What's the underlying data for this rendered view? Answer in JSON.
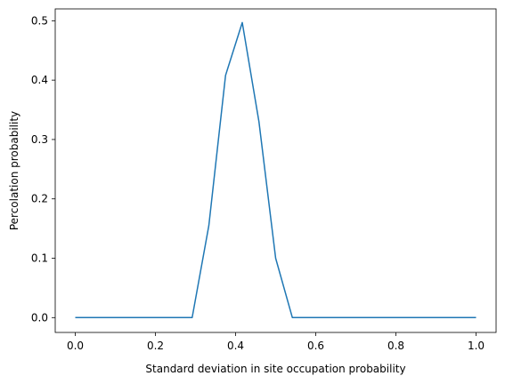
{
  "chart_data": {
    "type": "line",
    "title": "",
    "xlabel": "Standard deviation in site occupation probability",
    "ylabel": "Percolation probability",
    "xlim": [
      -0.05,
      1.05
    ],
    "ylim": [
      -0.025,
      0.52
    ],
    "grid": false,
    "legend": "none",
    "line_color": "#1f77b4",
    "xticks": [
      0.0,
      0.2,
      0.4,
      0.6,
      0.8,
      1.0
    ],
    "xtick_labels": [
      "0.0",
      "0.2",
      "0.4",
      "0.6",
      "0.8",
      "1.0"
    ],
    "yticks": [
      0.0,
      0.1,
      0.2,
      0.3,
      0.4,
      0.5
    ],
    "ytick_labels": [
      "0.0",
      "0.1",
      "0.2",
      "0.3",
      "0.4",
      "0.5"
    ],
    "series": [
      {
        "x": [
          0.0,
          0.0417,
          0.0833,
          0.125,
          0.1667,
          0.2083,
          0.25,
          0.2917,
          0.3333,
          0.375,
          0.4167,
          0.4583,
          0.5,
          0.5417,
          0.5833,
          0.625,
          0.6667,
          0.7083,
          0.75,
          0.7917,
          0.8333,
          0.875,
          0.9167,
          0.9583,
          1.0
        ],
        "y": [
          0.0,
          0.0,
          0.0,
          0.0,
          0.0,
          0.0,
          0.0,
          0.0,
          0.155,
          0.408,
          0.497,
          0.33,
          0.1,
          0.0,
          0.0,
          0.0,
          0.0,
          0.0,
          0.0,
          0.0,
          0.0,
          0.0,
          0.0,
          0.0,
          0.0
        ]
      }
    ]
  }
}
